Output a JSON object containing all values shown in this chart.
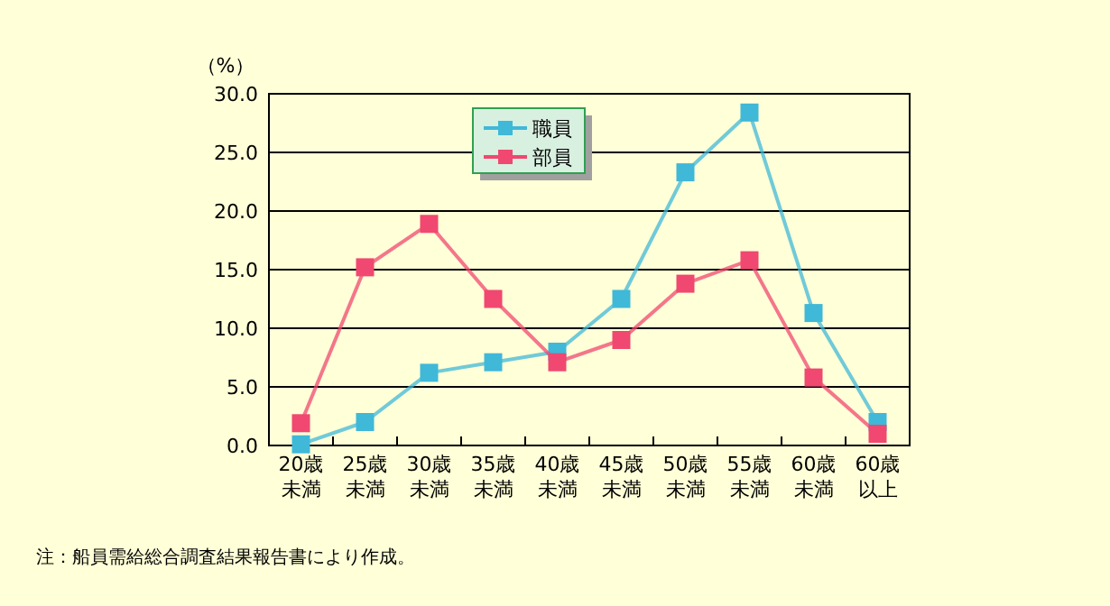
{
  "chart_data": {
    "type": "line",
    "ylabel": "（%）",
    "categories": [
      "20歳未満",
      "25歳未満",
      "30歳未満",
      "35歳未満",
      "40歳未満",
      "45歳未満",
      "50歳未満",
      "55歳未満",
      "60歳未満",
      "60歳以上"
    ],
    "series": [
      {
        "name": "職員",
        "color": "#40b8d8",
        "values": [
          0.1,
          2.0,
          6.2,
          7.1,
          8.0,
          12.5,
          23.3,
          28.4,
          11.3,
          2.0
        ]
      },
      {
        "name": "部員",
        "color": "#f04870",
        "values": [
          1.9,
          15.2,
          18.9,
          12.5,
          7.1,
          9.0,
          13.8,
          15.8,
          5.8,
          1.0
        ]
      }
    ],
    "ylim": [
      0,
      30
    ],
    "yticks": [
      {
        "value": 0,
        "label": "0.0"
      },
      {
        "value": 5,
        "label": "5.0"
      },
      {
        "value": 10,
        "label": "10.0"
      },
      {
        "value": 15,
        "label": "15.0"
      },
      {
        "value": 20,
        "label": "20.0"
      },
      {
        "value": 25,
        "label": "25.0"
      },
      {
        "value": 30,
        "label": "30.0"
      }
    ],
    "grid": "y",
    "legend": "top",
    "marker": "square",
    "line_style": "solid",
    "annotations": [
      "注：船員需給総合調査結果報告書により作成。"
    ]
  }
}
